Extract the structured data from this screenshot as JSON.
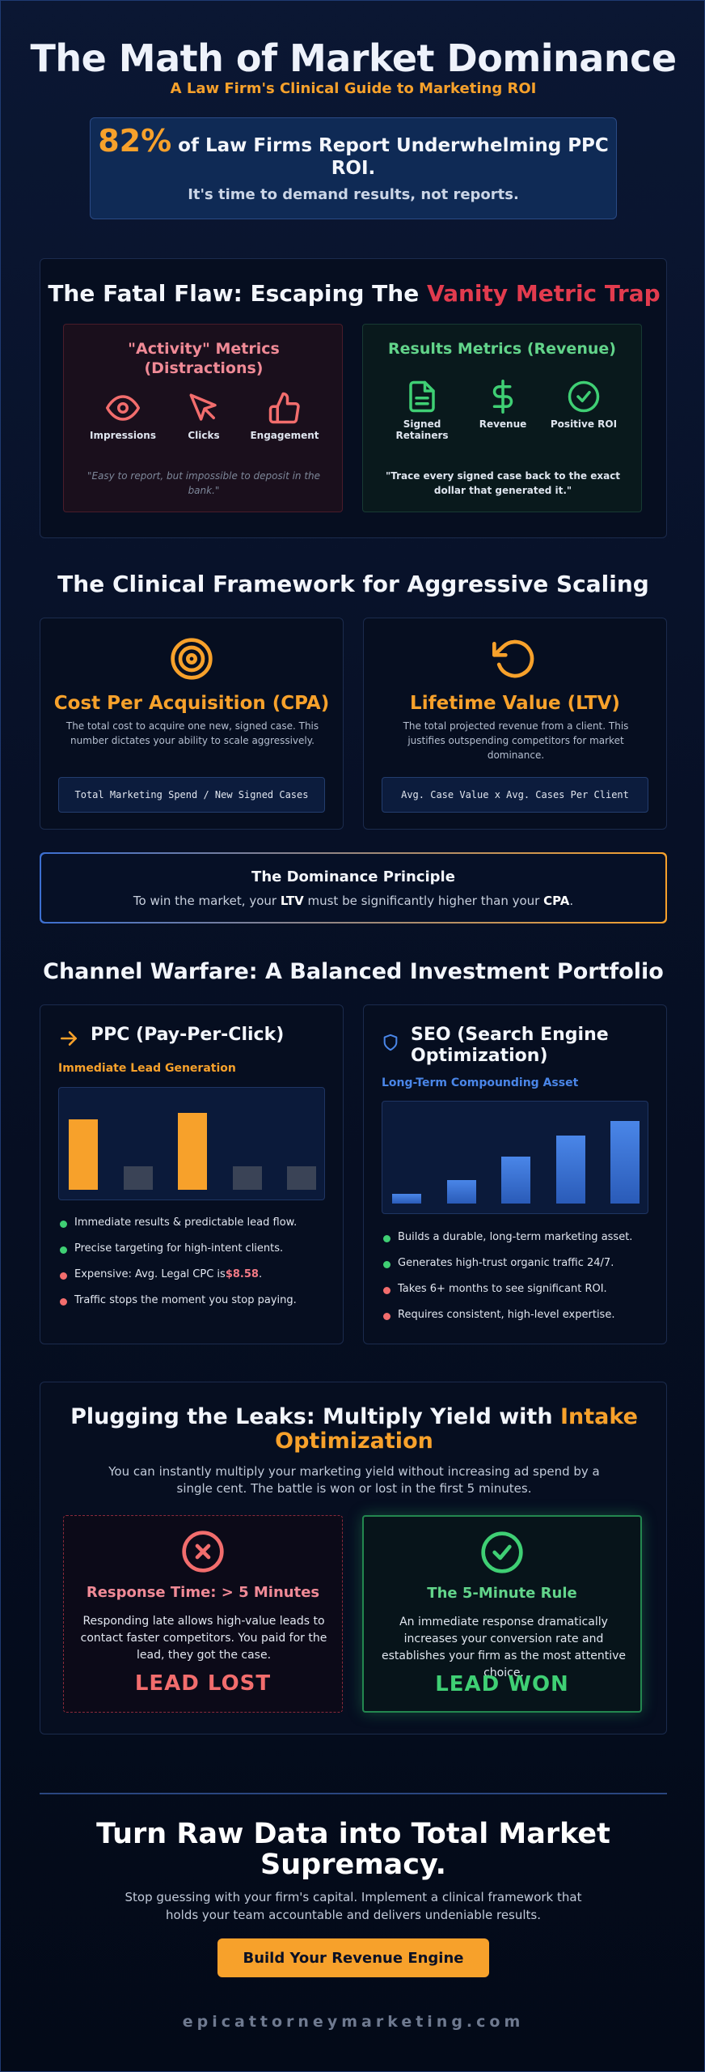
{
  "hero": {
    "title": "The Math of Market Dominance",
    "subtitle": "A Law Firm's Clinical Guide to Marketing ROI"
  },
  "stat": {
    "number": "82%",
    "text": "of Law Firms Report Underwhelming PPC ROI.",
    "subtext": "It's time to demand results, not reports."
  },
  "vanity": {
    "title_prefix": "The Fatal Flaw: Escaping The ",
    "title_highlight": "Vanity Metric Trap",
    "activity": {
      "title": "\"Activity\" Metrics (Distractions)",
      "items": [
        {
          "icon": "eye-icon",
          "label": "Impressions"
        },
        {
          "icon": "cursor-icon",
          "label": "Clicks"
        },
        {
          "icon": "thumbs-up-icon",
          "label": "Engagement"
        }
      ],
      "quote": "\"Easy to report, but impossible to deposit in the bank.\""
    },
    "results": {
      "title": "Results Metrics (Revenue)",
      "items": [
        {
          "icon": "document-icon",
          "label": "Signed Retainers"
        },
        {
          "icon": "dollar-icon",
          "label": "Revenue"
        },
        {
          "icon": "check-circle-icon",
          "label": "Positive ROI"
        }
      ],
      "quote": "\"Trace every signed case back to the exact dollar that generated it.\""
    }
  },
  "framework": {
    "title": "The Clinical Framework for Aggressive Scaling",
    "cpa": {
      "icon": "target-icon",
      "title": "Cost Per Acquisition (CPA)",
      "desc": "The total cost to acquire one new, signed case. This number dictates your ability to scale aggressively.",
      "formula": "Total Marketing Spend / New Signed Cases"
    },
    "ltv": {
      "icon": "rotate-ccw-icon",
      "title": "Lifetime Value (LTV)",
      "desc": "The total projected revenue from a client. This justifies outspending competitors for market dominance.",
      "formula": "Avg. Case Value x Avg. Cases Per Client"
    }
  },
  "principle": {
    "title": "The Dominance Principle",
    "text_1": "To win the market, your ",
    "ltv": "LTV",
    "text_2": " must be significantly higher than your ",
    "cpa": "CPA",
    "text_3": "."
  },
  "channels": {
    "title": "Channel Warfare: A Balanced Investment Portfolio",
    "ppc": {
      "icon": "arrow-right-icon",
      "title": "PPC (Pay-Per-Click)",
      "subtitle": "Immediate Lead Generation",
      "bars": [
        0.75,
        0.25,
        0.82,
        0.25,
        0.25
      ],
      "bar_colors": [
        "#f7a12b",
        "#3a4356",
        "#f7a12b",
        "#3a4356",
        "#3a4356"
      ],
      "items": [
        {
          "type": "pro",
          "text": "Immediate results & predictable lead flow."
        },
        {
          "type": "pro",
          "text": "Precise targeting for high-intent clients."
        },
        {
          "type": "con",
          "text": "Expensive: Avg. Legal CPC is",
          "highlight": "$8.58",
          "after": "."
        },
        {
          "type": "con",
          "text": "Traffic stops the moment you stop paying."
        }
      ]
    },
    "seo": {
      "icon": "shield-icon",
      "title": "SEO (Search Engine Optimization)",
      "subtitle": "Long-Term Compounding Asset",
      "bars": [
        0.1,
        0.25,
        0.5,
        0.72,
        0.88
      ],
      "items": [
        {
          "type": "pro",
          "text": "Builds a durable, long-term marketing asset."
        },
        {
          "type": "pro",
          "text": "Generates high-trust organic traffic 24/7."
        },
        {
          "type": "con",
          "text": "Takes 6+ months to see significant ROI."
        },
        {
          "type": "con",
          "text": "Requires consistent, high-level expertise."
        }
      ]
    }
  },
  "intake": {
    "title_prefix": "Plugging the Leaks: Multiply Yield with ",
    "title_highlight": "Intake Optimization",
    "desc": "You can instantly multiply your marketing yield without increasing ad spend by a single cent. The battle is won or lost in the first 5 minutes.",
    "lost": {
      "icon": "x-circle-icon",
      "title": "Response Time: > 5 Minutes",
      "desc": "Responding late allows high-value leads to contact faster competitors. You paid for the lead, they got the case.",
      "result": "LEAD LOST"
    },
    "won": {
      "icon": "check-circle-icon",
      "title": "The 5-Minute Rule",
      "desc": "An immediate response dramatically increases your conversion rate and establishes your firm as the most attentive choice.",
      "result": "LEAD WON"
    }
  },
  "cta": {
    "title": "Turn Raw Data into Total Market Supremacy.",
    "desc": "Stop guessing with your firm's capital. Implement a clinical framework that holds your team accountable and delivers undeniable results.",
    "button": "Build Your Revenue Engine"
  },
  "footer": {
    "domain": "epicattorneymarketing.com"
  },
  "colors": {
    "accent": "#f7a12b",
    "danger": "#e23b4e",
    "success": "#3fcf74",
    "seo_bar": "#3a78d8"
  }
}
